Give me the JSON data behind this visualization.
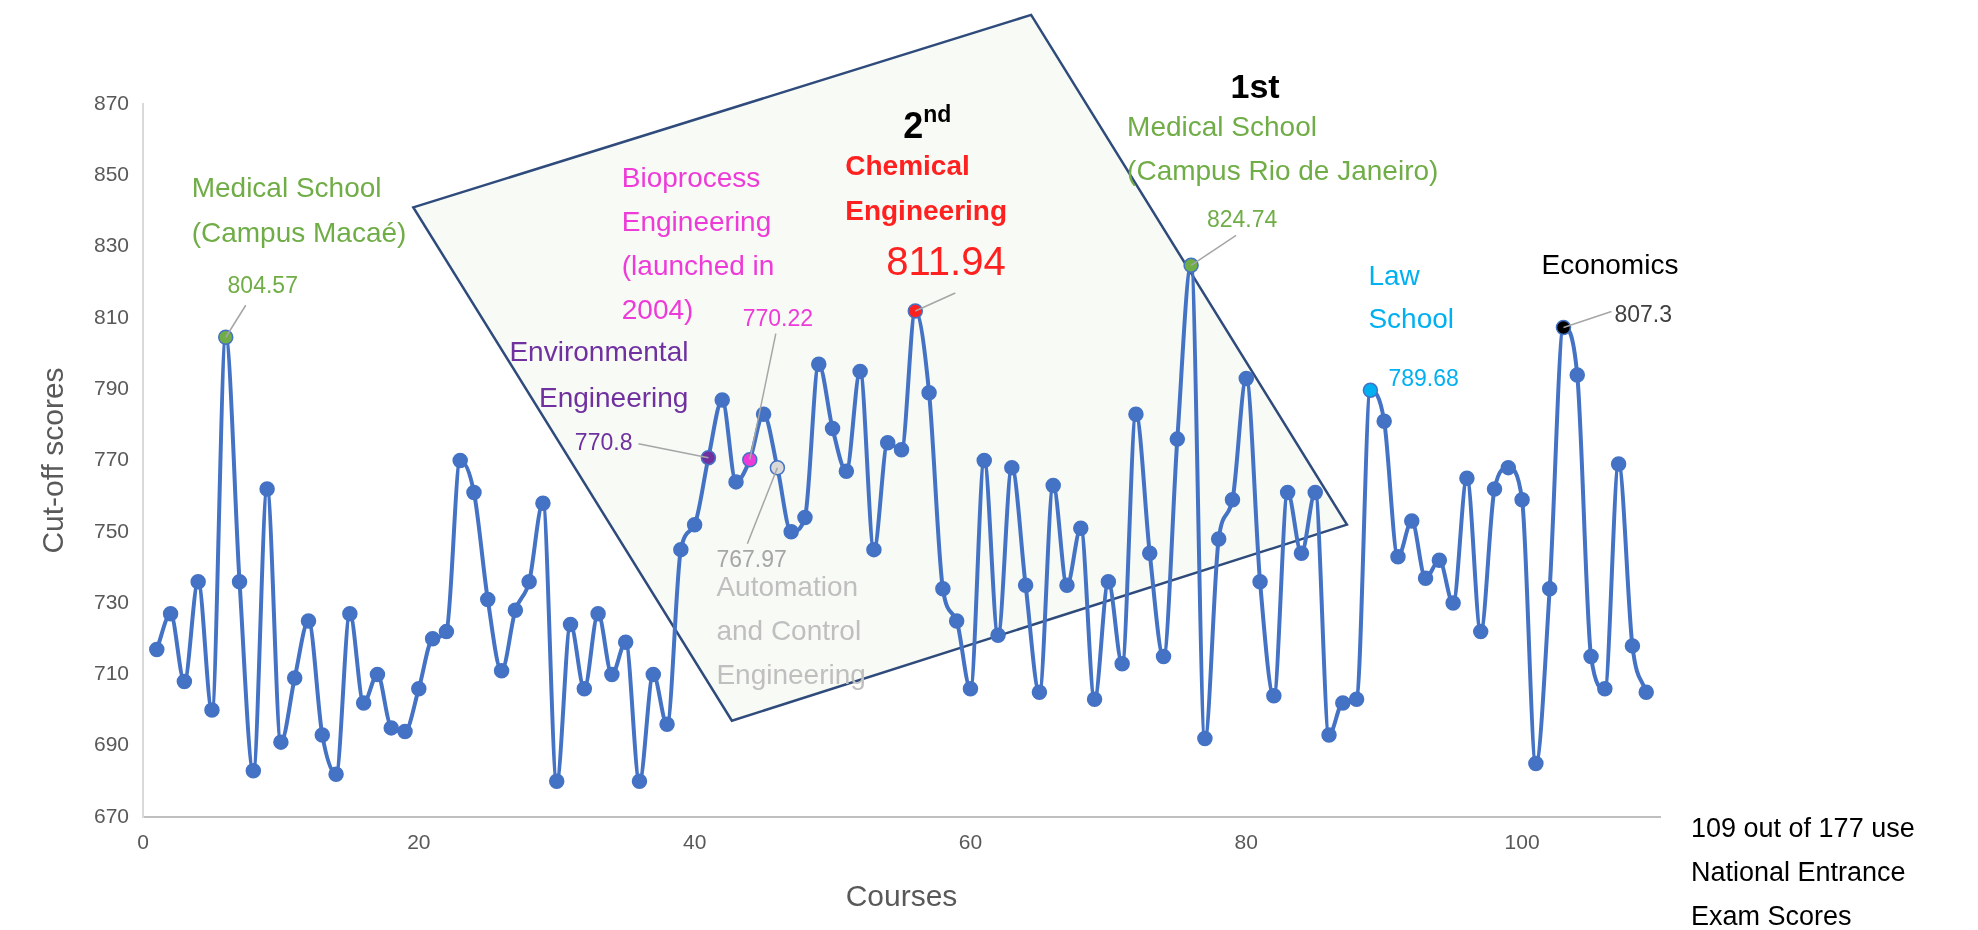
{
  "chart_data": {
    "type": "line",
    "xlabel": "Courses",
    "ylabel": "Cut-off scores",
    "xlim": [
      0,
      110
    ],
    "xticks": [
      0,
      20,
      40,
      60,
      80,
      100
    ],
    "ylim": [
      670,
      870
    ],
    "yticks": [
      670,
      690,
      710,
      730,
      750,
      770,
      790,
      810,
      830,
      850,
      870
    ],
    "grid": false,
    "legend": false,
    "marker": "circle",
    "x": [
      1,
      2,
      3,
      4,
      5,
      6,
      7,
      8,
      9,
      10,
      11,
      12,
      13,
      14,
      15,
      16,
      17,
      18,
      19,
      20,
      21,
      22,
      23,
      24,
      25,
      26,
      27,
      28,
      29,
      30,
      31,
      32,
      33,
      34,
      35,
      36,
      37,
      38,
      39,
      40,
      41,
      42,
      43,
      44,
      45,
      46,
      47,
      48,
      49,
      50,
      51,
      52,
      53,
      54,
      55,
      56,
      57,
      58,
      59,
      60,
      61,
      62,
      63,
      64,
      65,
      66,
      67,
      68,
      69,
      70,
      71,
      72,
      73,
      74,
      75,
      76,
      77,
      78,
      79,
      80,
      81,
      82,
      83,
      84,
      85,
      86,
      87,
      88,
      89,
      90,
      91,
      92,
      93,
      94,
      95,
      96,
      97,
      98,
      99,
      100,
      101,
      102,
      103,
      104,
      105,
      106,
      107,
      108,
      109
    ],
    "series": [
      {
        "color": "#4472c4",
        "values": [
          717,
          727,
          708,
          736,
          700,
          804.57,
          736,
          683,
          762,
          691,
          709,
          725,
          693,
          682,
          727,
          702,
          710,
          695,
          694,
          706,
          720,
          722,
          770,
          761,
          731,
          711,
          728,
          736,
          758,
          680,
          724,
          706,
          727,
          710,
          719,
          680,
          710,
          696,
          745,
          752,
          770.8,
          787,
          764,
          770.22,
          783,
          767.97,
          750,
          754,
          797,
          779,
          767,
          795,
          745,
          775,
          773,
          811.94,
          789,
          734,
          725,
          706,
          770,
          721,
          768,
          735,
          705,
          763,
          735,
          751,
          703,
          736,
          713,
          783,
          744,
          715,
          776,
          824.74,
          692,
          748,
          759,
          793,
          736,
          704,
          761,
          744,
          761,
          693,
          702,
          703,
          789.68,
          781,
          743,
          753,
          737,
          742,
          730,
          765,
          722,
          762,
          768,
          759,
          685,
          734,
          807.3,
          794,
          715,
          706,
          769,
          718,
          705
        ],
        "colors": [
          "#4472c4",
          "#4472c4",
          "#4472c4",
          "#4472c4",
          "#4472c4",
          "#70ad47",
          "#4472c4",
          "#4472c4",
          "#4472c4",
          "#4472c4",
          "#4472c4",
          "#4472c4",
          "#4472c4",
          "#4472c4",
          "#4472c4",
          "#4472c4",
          "#4472c4",
          "#4472c4",
          "#4472c4",
          "#4472c4",
          "#4472c4",
          "#4472c4",
          "#4472c4",
          "#4472c4",
          "#4472c4",
          "#4472c4",
          "#4472c4",
          "#4472c4",
          "#4472c4",
          "#4472c4",
          "#4472c4",
          "#4472c4",
          "#4472c4",
          "#4472c4",
          "#4472c4",
          "#4472c4",
          "#4472c4",
          "#4472c4",
          "#4472c4",
          "#4472c4",
          "#7030a0",
          "#4472c4",
          "#4472c4",
          "#ee3ad8",
          "#4472c4",
          "#d9d9d9",
          "#4472c4",
          "#4472c4",
          "#4472c4",
          "#4472c4",
          "#4472c4",
          "#4472c4",
          "#4472c4",
          "#4472c4",
          "#4472c4",
          "#ff2020",
          "#4472c4",
          "#4472c4",
          "#4472c4",
          "#4472c4",
          "#4472c4",
          "#4472c4",
          "#4472c4",
          "#4472c4",
          "#4472c4",
          "#4472c4",
          "#4472c4",
          "#4472c4",
          "#4472c4",
          "#4472c4",
          "#4472c4",
          "#4472c4",
          "#4472c4",
          "#4472c4",
          "#4472c4",
          "#70ad47",
          "#4472c4",
          "#4472c4",
          "#4472c4",
          "#4472c4",
          "#4472c4",
          "#4472c4",
          "#4472c4",
          "#4472c4",
          "#4472c4",
          "#4472c4",
          "#4472c4",
          "#4472c4",
          "#00b0f0",
          "#4472c4",
          "#4472c4",
          "#4472c4",
          "#4472c4",
          "#4472c4",
          "#4472c4",
          "#4472c4",
          "#4472c4",
          "#4472c4",
          "#4472c4",
          "#4472c4",
          "#4472c4",
          "#4472c4",
          "#000000",
          "#4472c4",
          "#4472c4",
          "#4472c4",
          "#4472c4",
          "#4472c4",
          "#4472c4"
        ],
        "value_labels": [
          null,
          null,
          null,
          null,
          null,
          "804.57",
          null,
          null,
          null,
          null,
          null,
          null,
          null,
          null,
          null,
          null,
          null,
          null,
          null,
          null,
          null,
          null,
          null,
          null,
          null,
          null,
          null,
          null,
          null,
          null,
          null,
          null,
          null,
          null,
          null,
          null,
          null,
          null,
          null,
          null,
          "770.8",
          null,
          null,
          "770.22",
          null,
          "767.97",
          null,
          null,
          null,
          null,
          null,
          null,
          null,
          null,
          null,
          "811.94",
          null,
          null,
          null,
          null,
          null,
          null,
          null,
          null,
          null,
          null,
          null,
          null,
          null,
          null,
          null,
          null,
          null,
          null,
          null,
          "824.74",
          null,
          null,
          null,
          null,
          null,
          null,
          null,
          null,
          null,
          null,
          null,
          null,
          "789.68",
          null,
          null,
          null,
          null,
          null,
          null,
          null,
          null,
          null,
          null,
          null,
          null,
          null,
          "807.3",
          null,
          null,
          null,
          null,
          null,
          null
        ]
      }
    ],
    "annotations": [
      "Medical School\n(Campus Macaé)",
      {
        "text": "Environmental\nEngineering",
        "x": 41,
        "y": 770.8
      },
      {
        "text": "Bioprocess\nEngineering\n(launched in\n2004)",
        "x": 44,
        "y": 770.22
      },
      {
        "text": "Automation\nand Control\nEngineering",
        "x": 46,
        "y": 767.97
      },
      "Chemical\nEngineering",
      "2$^{nd}$",
      {
        "text": "Medical School\n(Campus Rio de Janeiro)",
        "x": 76,
        "y": 824.74
      },
      "1st",
      {
        "text": "Law\nSchool",
        "x": 89,
        "y": 789.68
      },
      {
        "text": "Economics",
        "x": 103,
        "y": 807.3
      },
      "109 out of 177 use\nNational Entrance\nExam Scores"
    ]
  }
}
